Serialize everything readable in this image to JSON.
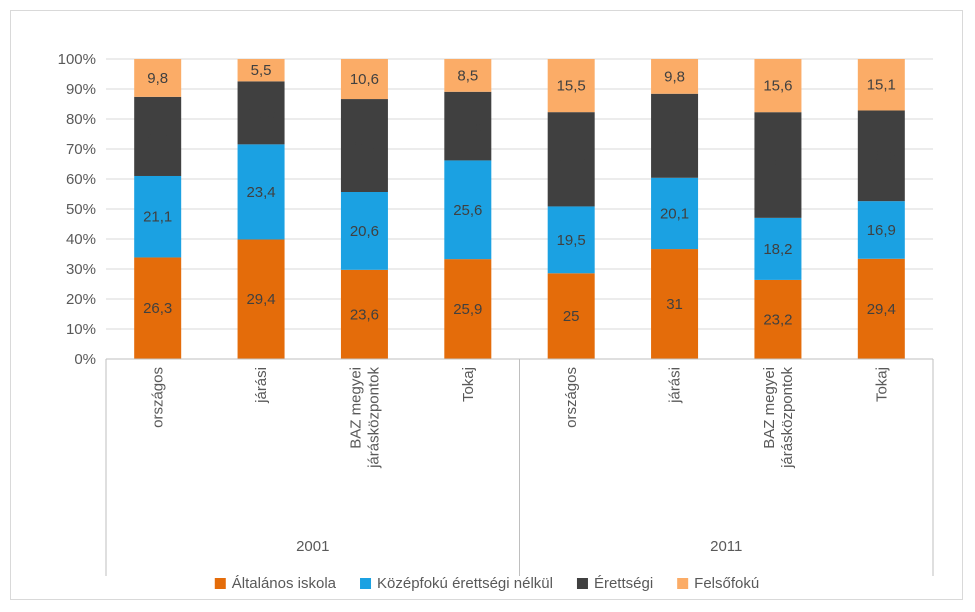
{
  "chart_data": {
    "type": "bar",
    "stacked": true,
    "percent_stacked": true,
    "y_ticks": [
      "0%",
      "10%",
      "20%",
      "30%",
      "40%",
      "50%",
      "60%",
      "70%",
      "80%",
      "90%",
      "100%"
    ],
    "ylim": [
      0,
      100
    ],
    "grid": true,
    "legend_position": "bottom",
    "groups": [
      {
        "label": "2001",
        "categories": [
          [
            "országos"
          ],
          [
            "járási"
          ],
          [
            "BAZ megyei",
            "járásközpontok"
          ],
          [
            "Tokaj"
          ]
        ]
      },
      {
        "label": "2011",
        "categories": [
          [
            "országos"
          ],
          [
            "járási"
          ],
          [
            "BAZ megyei",
            "járásközpontok"
          ],
          [
            "Tokaj"
          ]
        ]
      }
    ],
    "series": [
      {
        "name": "Általános iskola",
        "color": "#e46c0a",
        "values": [
          26.3,
          29.4,
          23.6,
          25.9,
          25,
          31,
          23.2,
          29.4
        ],
        "labels": [
          "26,3",
          "29,4",
          "23,6",
          "25,9",
          "25",
          "31",
          "23,2",
          "29,4"
        ]
      },
      {
        "name": "Középfokú érettségi nélkül",
        "color": "#1ba1e2",
        "values": [
          21.1,
          23.4,
          20.6,
          25.6,
          19.5,
          20.1,
          18.2,
          16.9
        ],
        "labels": [
          "21,1",
          "23,4",
          "20,6",
          "25,6",
          "19,5",
          "20,1",
          "18,2",
          "16,9"
        ]
      },
      {
        "name": "Érettségi",
        "color": "#404040",
        "values": [
          20.5,
          15.5,
          24.6,
          17.8,
          27.5,
          23.7,
          31,
          26.6
        ],
        "labels": [
          "20,5",
          "15,5",
          "24,6",
          "17,8",
          "27,5",
          "23,7",
          "31",
          "26,6"
        ]
      },
      {
        "name": "Felsőfokú",
        "color": "#fbac67",
        "values": [
          9.8,
          5.5,
          10.6,
          8.5,
          15.5,
          9.8,
          15.6,
          15.1
        ],
        "labels": [
          "9,8",
          "5,5",
          "10,6",
          "8,5",
          "15,5",
          "9,8",
          "15,6",
          "15,1"
        ]
      }
    ]
  }
}
